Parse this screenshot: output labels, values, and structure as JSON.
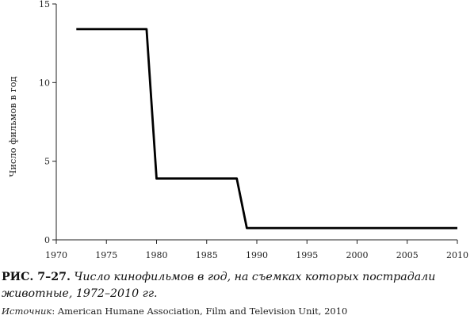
{
  "chart_data": {
    "type": "line",
    "ylabel": "Число фильмов в год",
    "xlabel": "",
    "xlim": [
      1970,
      2010
    ],
    "ylim": [
      0,
      15
    ],
    "x_ticks": [
      "1970",
      "1975",
      "1980",
      "1985",
      "1990",
      "1995",
      "2000",
      "2005",
      "2010"
    ],
    "y_ticks": [
      "0",
      "5",
      "10",
      "15"
    ],
    "grid": false,
    "series": [
      {
        "x": [
          1972,
          1979,
          1980,
          1988,
          1989,
          2010
        ],
        "values": [
          13.4,
          13.4,
          3.9,
          3.9,
          0.75,
          0.75
        ]
      }
    ],
    "line_color": "#000000"
  },
  "caption": {
    "number": "РИС. 7–27.",
    "text": "Число кинофильмов в год, на съемках которых пострадали животные, 1972–2010 гг."
  },
  "source": {
    "label": "Источник",
    "text": ": American Humane Association, Film and Television Unit, 2010"
  }
}
